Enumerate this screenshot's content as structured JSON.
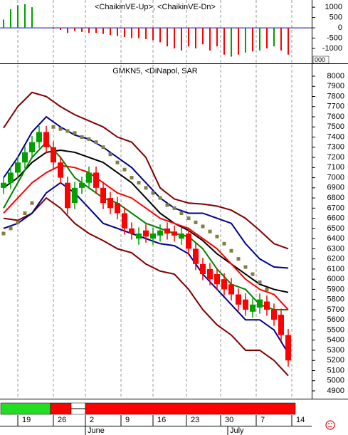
{
  "chart_data": [
    {
      "type": "bar",
      "title": "<ChaikinVE-Up>, <ChaikinVE-Dn>",
      "ylim": [
        -1690,
        1350
      ],
      "yticks": [
        1000,
        500,
        0,
        -500,
        -1000
      ],
      "xlim": [
        -0.5,
        43.3
      ],
      "axis_box_label": "000",
      "series": [
        {
          "color": "#00a000",
          "values": [
            400,
            900,
            1100,
            1150,
            1000,
            null,
            null,
            null,
            null,
            null,
            null,
            null,
            null,
            null,
            null,
            null,
            null,
            null,
            null,
            null,
            null,
            null,
            null,
            null,
            null,
            null,
            null,
            null,
            null,
            null,
            null,
            null,
            -1400,
            null,
            -1200,
            null,
            -1100,
            null,
            -900,
            null,
            null
          ]
        },
        {
          "color": "#ff0000",
          "values": [
            null,
            null,
            null,
            null,
            null,
            null,
            null,
            -50,
            -100,
            -250,
            -150,
            -200,
            -250,
            -250,
            -300,
            -350,
            -400,
            -450,
            -500,
            -500,
            -550,
            -600,
            -700,
            -900,
            -1000,
            -1100,
            -900,
            -1000,
            -800,
            -1100,
            -900,
            -1300,
            null,
            -1300,
            null,
            -1150,
            null,
            -1000,
            null,
            -1100,
            -1300
          ]
        }
      ]
    },
    {
      "type": "candlestick",
      "title": "GMKN5, <DiNapol, SAR",
      "ylim": [
        4823,
        8105
      ],
      "xlim": [
        -0.5,
        43.3
      ],
      "yticks": [
        8000,
        7900,
        7800,
        7700,
        7600,
        7500,
        7400,
        7300,
        7200,
        7100,
        7000,
        6900,
        6800,
        6700,
        6600,
        6500,
        6400,
        6300,
        6200,
        6100,
        6000,
        5900,
        5800,
        5700,
        5600,
        5500,
        5400,
        5300,
        5200,
        5100,
        5000,
        4900
      ],
      "xticks": [
        {
          "value": 2,
          "label": "19"
        },
        {
          "value": 7,
          "label": "26"
        },
        {
          "value": 11.5,
          "label": "2"
        },
        {
          "value": 16.5,
          "label": "9"
        },
        {
          "value": 21,
          "label": "16"
        },
        {
          "value": 25.7,
          "label": "23"
        },
        {
          "value": 30.5,
          "label": "30"
        },
        {
          "value": 35.5,
          "label": "7"
        },
        {
          "value": 40.5,
          "label": "14"
        }
      ],
      "months": [
        {
          "value": 11.5,
          "label": "June"
        },
        {
          "value": 31.5,
          "label": "July"
        }
      ],
      "up_color": "#00a000",
      "down_color": "#ff0000",
      "open": [
        6900,
        6950,
        7050,
        7150,
        7250,
        7350,
        7450,
        7300,
        7150,
        6950,
        6750,
        6900,
        6950,
        7050,
        6900,
        6800,
        6750,
        6650,
        6500,
        6400,
        6480,
        6400,
        6430,
        6500,
        6470,
        6400,
        6450,
        6300,
        6150,
        6100,
        6050,
        6000,
        5950,
        5850,
        5800,
        5680,
        5720,
        5780,
        5700,
        5650,
        5450
      ],
      "high": [
        7010,
        7110,
        7210,
        7310,
        7410,
        7510,
        7510,
        7360,
        7210,
        7010,
        6960,
        7010,
        7110,
        7110,
        6960,
        6860,
        6810,
        6710,
        6560,
        6510,
        6540,
        6510,
        6540,
        6560,
        6530,
        6510,
        6510,
        6360,
        6210,
        6160,
        6110,
        6060,
        6010,
        5910,
        5860,
        5810,
        5860,
        5840,
        5760,
        5710,
        5510
      ],
      "low": [
        6840,
        6890,
        6990,
        7090,
        7190,
        7290,
        7240,
        7090,
        6940,
        6640,
        6690,
        6840,
        6890,
        6840,
        6690,
        6640,
        6590,
        6440,
        6390,
        6340,
        6360,
        6340,
        6370,
        6390,
        6370,
        6340,
        6240,
        6090,
        5990,
        5940,
        5890,
        5840,
        5790,
        5690,
        5640,
        5620,
        5660,
        5640,
        5540,
        5390,
        5140
      ],
      "close": [
        6950,
        7050,
        7150,
        7250,
        7350,
        7450,
        7300,
        7150,
        7000,
        6700,
        6900,
        6950,
        7050,
        6900,
        6750,
        6700,
        6650,
        6500,
        6450,
        6450,
        6420,
        6450,
        6480,
        6450,
        6430,
        6450,
        6300,
        6150,
        6050,
        6000,
        5950,
        5900,
        5850,
        5750,
        5700,
        5750,
        5800,
        5700,
        5600,
        5450,
        5200
      ],
      "lines": [
        {
          "color": "#800000",
          "x": [
            0,
            2,
            4,
            6,
            8,
            10,
            12,
            14,
            16,
            18,
            20,
            22,
            24,
            26,
            28,
            30,
            32,
            34,
            36,
            38,
            40
          ],
          "values": [
            7490,
            7700,
            7840,
            7800,
            7700,
            7620,
            7560,
            7500,
            7400,
            7350,
            7200,
            6900,
            6790,
            6750,
            6740,
            6720,
            6680,
            6600,
            6480,
            6350,
            6300
          ]
        },
        {
          "color": "#800000",
          "x": [
            0,
            2,
            4,
            6,
            8,
            10,
            12,
            14,
            16,
            18,
            20,
            22,
            24,
            26,
            28,
            30,
            32,
            34,
            36,
            38,
            40
          ],
          "values": [
            6600,
            6580,
            6650,
            6800,
            6700,
            6550,
            6450,
            6380,
            6300,
            6260,
            6150,
            6080,
            6050,
            5900,
            5700,
            5550,
            5450,
            5300,
            5300,
            5200,
            5050
          ]
        },
        {
          "color": "#00008b",
          "x": [
            0,
            2,
            4,
            6,
            8,
            10,
            12,
            14,
            16,
            18,
            20,
            22,
            24,
            26,
            28,
            30,
            32,
            34,
            36,
            38,
            40
          ],
          "values": [
            7000,
            7200,
            7450,
            7600,
            7500,
            7420,
            7380,
            7300,
            7200,
            7100,
            6950,
            6800,
            6700,
            6650,
            6650,
            6600,
            6550,
            6350,
            6200,
            6120,
            6110
          ]
        },
        {
          "color": "#00008b",
          "x": [
            0,
            2,
            4,
            6,
            8,
            10,
            12,
            14,
            16,
            18,
            20,
            22,
            24,
            26,
            28,
            30,
            32,
            34,
            36,
            38,
            40
          ],
          "values": [
            6500,
            6550,
            6650,
            6850,
            6950,
            6850,
            6700,
            6550,
            6500,
            6450,
            6400,
            6350,
            6330,
            6250,
            6050,
            5900,
            5750,
            5600,
            5600,
            5500,
            5270
          ]
        },
        {
          "color": "#000000",
          "x": [
            0,
            2,
            4,
            6,
            8,
            10,
            12,
            14,
            16,
            18,
            20,
            22,
            24,
            26,
            28,
            30,
            32,
            34,
            36,
            38,
            40
          ],
          "values": [
            6900,
            7000,
            7150,
            7250,
            7270,
            7250,
            7200,
            7150,
            7050,
            6950,
            6800,
            6650,
            6550,
            6480,
            6380,
            6250,
            6150,
            6050,
            5950,
            5900,
            5870
          ]
        },
        {
          "color": "#ff0000",
          "x": [
            0,
            2,
            4,
            6,
            8,
            10,
            12,
            14,
            16,
            18,
            20,
            22,
            24,
            26,
            28,
            30,
            32,
            34,
            36,
            38,
            40
          ],
          "values": [
            6650,
            6800,
            6950,
            7050,
            7120,
            7100,
            7050,
            6950,
            6850,
            6800,
            6700,
            6600,
            6550,
            6500,
            6400,
            6300,
            6150,
            6000,
            5900,
            5850,
            5700
          ]
        },
        {
          "color": "#008000",
          "x": [
            0,
            2,
            4,
            6,
            8,
            10,
            12,
            14,
            16,
            18,
            20,
            22,
            24,
            26,
            28,
            30,
            32,
            34,
            36,
            38,
            40
          ],
          "values": [
            6700,
            6950,
            7200,
            7350,
            7200,
            7000,
            6900,
            6800,
            6750,
            6650,
            6550,
            6500,
            6450,
            6420,
            6300,
            6100,
            5950,
            5900,
            5750,
            5700,
            5700
          ]
        }
      ],
      "sar": {
        "color": "#808040",
        "x": [
          0,
          1,
          2,
          3,
          4,
          7,
          8,
          9,
          10,
          11,
          12,
          13,
          14,
          15,
          16,
          17,
          18,
          19,
          20,
          21,
          22,
          23,
          24,
          25,
          26,
          27,
          28,
          29,
          30,
          31,
          32,
          33,
          34,
          35,
          36,
          37
        ],
        "values": [
          6450,
          6500,
          6560,
          6650,
          6750,
          7500,
          7480,
          7460,
          7440,
          7400,
          7380,
          7350,
          7300,
          7230,
          7150,
          7080,
          7000,
          6950,
          6900,
          6850,
          6800,
          6730,
          6700,
          6650,
          6600,
          6560,
          6520,
          6470,
          6420,
          6350,
          6280,
          6200,
          6120,
          6050,
          5970,
          5900
        ]
      }
    }
  ]
}
